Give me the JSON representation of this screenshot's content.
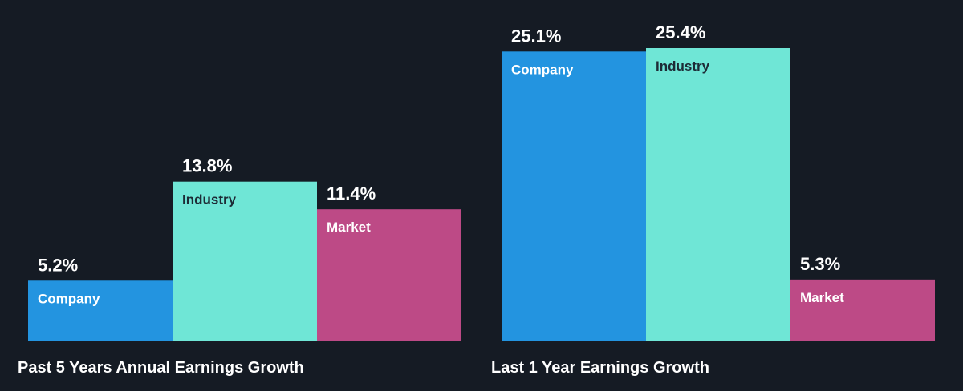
{
  "colors": {
    "background": "#151b24",
    "company": "#2394e0",
    "industry": "#6fe6d6",
    "market": "#bd4a86",
    "baseline": "#d0d4da",
    "label_on_company": "#ffffff",
    "label_on_industry": "#1d2b36",
    "label_on_market": "#ffffff"
  },
  "chart_data": [
    {
      "type": "bar",
      "title": "Past 5 Years Annual Earnings Growth",
      "categories": [
        "Company",
        "Industry",
        "Market"
      ],
      "values": [
        5.2,
        13.8,
        11.4
      ],
      "value_labels": [
        "5.2%",
        "13.8%",
        "11.4%"
      ],
      "unit": "%",
      "ylim": [
        0,
        27
      ],
      "grid": false,
      "legend": "none"
    },
    {
      "type": "bar",
      "title": "Last 1 Year Earnings Growth",
      "categories": [
        "Company",
        "Industry",
        "Market"
      ],
      "values": [
        25.1,
        25.4,
        5.3
      ],
      "value_labels": [
        "25.1%",
        "25.4%",
        "5.3%"
      ],
      "unit": "%",
      "ylim": [
        0,
        27
      ],
      "grid": false,
      "legend": "none"
    }
  ]
}
